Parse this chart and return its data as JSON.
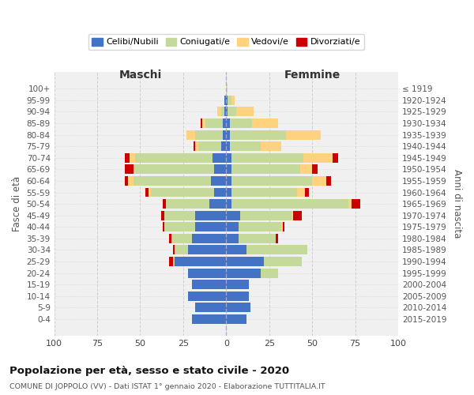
{
  "age_groups": [
    "0-4",
    "5-9",
    "10-14",
    "15-19",
    "20-24",
    "25-29",
    "30-34",
    "35-39",
    "40-44",
    "45-49",
    "50-54",
    "55-59",
    "60-64",
    "65-69",
    "70-74",
    "75-79",
    "80-84",
    "85-89",
    "90-94",
    "95-99",
    "100+"
  ],
  "birth_years": [
    "2015-2019",
    "2010-2014",
    "2005-2009",
    "2000-2004",
    "1995-1999",
    "1990-1994",
    "1985-1989",
    "1980-1984",
    "1975-1979",
    "1970-1974",
    "1965-1969",
    "1960-1964",
    "1955-1959",
    "1950-1954",
    "1945-1949",
    "1940-1944",
    "1935-1939",
    "1930-1934",
    "1925-1929",
    "1920-1924",
    "≤ 1919"
  ],
  "colors": {
    "celibe": "#4472C4",
    "coniugato": "#C5D99A",
    "vedovo": "#FFD280",
    "divorziato": "#CC0000"
  },
  "maschi": {
    "celibe": [
      20,
      18,
      22,
      20,
      22,
      30,
      22,
      20,
      18,
      18,
      10,
      7,
      9,
      7,
      8,
      3,
      2,
      2,
      1,
      1,
      0
    ],
    "coniugato": [
      0,
      0,
      0,
      0,
      0,
      1,
      8,
      12,
      18,
      18,
      25,
      37,
      45,
      47,
      45,
      13,
      16,
      10,
      2,
      0,
      0
    ],
    "vedovo": [
      0,
      0,
      0,
      0,
      0,
      0,
      0,
      0,
      0,
      0,
      0,
      1,
      3,
      0,
      3,
      2,
      5,
      2,
      2,
      0,
      0
    ],
    "divorziato": [
      0,
      0,
      0,
      0,
      0,
      2,
      1,
      1,
      1,
      2,
      2,
      2,
      2,
      5,
      3,
      1,
      0,
      1,
      0,
      0,
      0
    ]
  },
  "femmine": {
    "nubile": [
      12,
      14,
      13,
      13,
      20,
      22,
      12,
      7,
      7,
      8,
      3,
      3,
      3,
      3,
      3,
      2,
      2,
      2,
      1,
      1,
      0
    ],
    "coniugata": [
      0,
      0,
      0,
      0,
      10,
      22,
      35,
      22,
      25,
      30,
      68,
      38,
      47,
      40,
      42,
      18,
      33,
      13,
      5,
      2,
      0
    ],
    "vedova": [
      0,
      0,
      0,
      0,
      0,
      0,
      0,
      0,
      1,
      1,
      2,
      5,
      8,
      7,
      17,
      12,
      20,
      15,
      10,
      2,
      1
    ],
    "divorziata": [
      0,
      0,
      0,
      0,
      0,
      0,
      0,
      1,
      1,
      5,
      5,
      2,
      3,
      3,
      3,
      0,
      0,
      0,
      0,
      0,
      0
    ]
  },
  "xlim": 100,
  "title": "Popolazione per età, sesso e stato civile - 2020",
  "subtitle": "COMUNE DI JOPPOLO (VV) - Dati ISTAT 1° gennaio 2020 - Elaborazione TUTTITALIA.IT",
  "ylabel_left": "Fasce di età",
  "ylabel_right": "Anni di nascita",
  "header_left": "Maschi",
  "header_right": "Femmine",
  "bg_color": "#F0F0F0",
  "grid_color": "#CCCCCC"
}
